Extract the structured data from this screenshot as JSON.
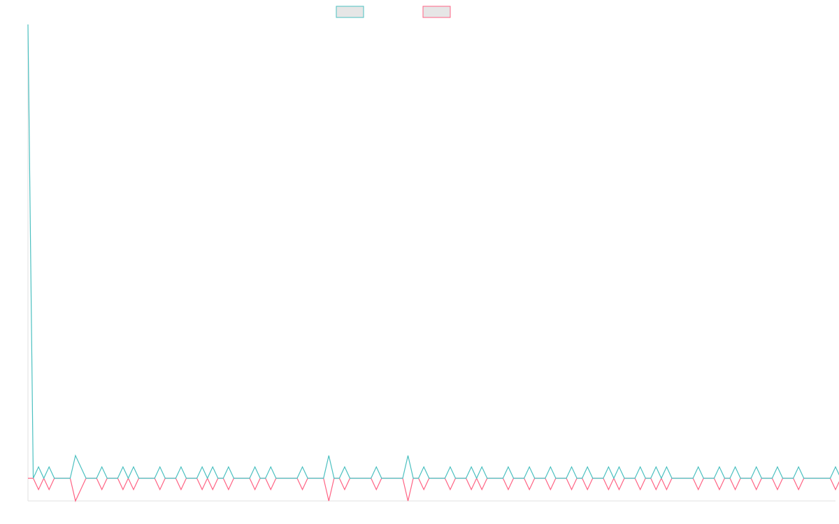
{
  "chart_data": {
    "type": "line",
    "title": "",
    "xlabel": "",
    "ylabel": "",
    "grid": false,
    "legend_position": "top-center",
    "x_count": 154,
    "ylim": [
      -2,
      40
    ],
    "series": [
      {
        "name": "",
        "color": "#4bc0c0",
        "fill": "#e6e6e6",
        "values": [
          40,
          0,
          1,
          0,
          1,
          0,
          0,
          0,
          0,
          2,
          1,
          0,
          0,
          0,
          1,
          0,
          0,
          0,
          1,
          0,
          1,
          0,
          0,
          0,
          0,
          1,
          0,
          0,
          0,
          1,
          0,
          0,
          0,
          1,
          0,
          1,
          0,
          0,
          1,
          0,
          0,
          0,
          0,
          1,
          0,
          0,
          1,
          0,
          0,
          0,
          0,
          0,
          1,
          0,
          0,
          0,
          0,
          2,
          0,
          0,
          1,
          0,
          0,
          0,
          0,
          0,
          1,
          0,
          0,
          0,
          0,
          0,
          2,
          0,
          0,
          1,
          0,
          0,
          0,
          0,
          1,
          0,
          0,
          0,
          1,
          0,
          1,
          0,
          0,
          0,
          0,
          1,
          0,
          0,
          0,
          1,
          0,
          0,
          0,
          1,
          0,
          0,
          0,
          1,
          0,
          0,
          1,
          0,
          0,
          0,
          1,
          0,
          1,
          0,
          0,
          0,
          1,
          0,
          0,
          1,
          0,
          1,
          0,
          0,
          0,
          0,
          0,
          1,
          0,
          0,
          0,
          1,
          0,
          0,
          1,
          0,
          0,
          0,
          1,
          0,
          0,
          0,
          1,
          0,
          0,
          0,
          1,
          0,
          0,
          0,
          0,
          0,
          0,
          1,
          0,
          0,
          1
        ]
      },
      {
        "name": "",
        "color": "#ff6384",
        "fill": "#e6e6e6",
        "values": [
          0,
          0,
          -1,
          0,
          -1,
          0,
          0,
          0,
          0,
          -2,
          -1,
          0,
          0,
          0,
          -1,
          0,
          0,
          0,
          -1,
          0,
          -1,
          0,
          0,
          0,
          0,
          -1,
          0,
          0,
          0,
          -1,
          0,
          0,
          0,
          -1,
          0,
          -1,
          0,
          0,
          -1,
          0,
          0,
          0,
          0,
          -1,
          0,
          0,
          -1,
          0,
          0,
          0,
          0,
          0,
          -1,
          0,
          0,
          0,
          0,
          -2,
          0,
          0,
          -1,
          0,
          0,
          0,
          0,
          0,
          -1,
          0,
          0,
          0,
          0,
          0,
          -2,
          0,
          0,
          -1,
          0,
          0,
          0,
          0,
          -1,
          0,
          0,
          0,
          -1,
          0,
          -1,
          0,
          0,
          0,
          0,
          -1,
          0,
          0,
          0,
          -1,
          0,
          0,
          0,
          -1,
          0,
          0,
          0,
          -1,
          0,
          0,
          -1,
          0,
          0,
          0,
          -1,
          0,
          -1,
          0,
          0,
          0,
          -1,
          0,
          0,
          -1,
          0,
          -1,
          0,
          0,
          0,
          0,
          0,
          -1,
          0,
          0,
          0,
          -1,
          0,
          0,
          -1,
          0,
          0,
          0,
          -1,
          0,
          0,
          0,
          -1,
          0,
          0,
          0,
          -1,
          0,
          0,
          0,
          0,
          0,
          0,
          -1,
          0,
          0,
          -1
        ]
      }
    ]
  }
}
